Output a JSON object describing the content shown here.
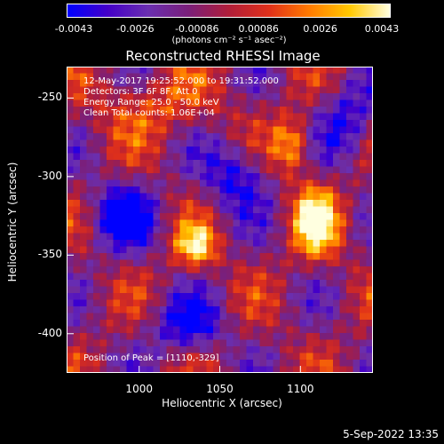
{
  "title": "Reconstructed RHESSI Image",
  "colorbar": {
    "ticks": [
      "-0.0043",
      "-0.0026",
      "-0.00086",
      "0.00086",
      "0.0026",
      "0.0043"
    ],
    "unit": "(photons cm⁻² s⁻¹ asec⁻²)",
    "colors": [
      "#0000ff",
      "#4400c8",
      "#6a2fb0",
      "#7a1f7a",
      "#b01e3a",
      "#e0301a",
      "#ff7a00",
      "#ffc800",
      "#ffffe0"
    ]
  },
  "annotations": {
    "time": "12-May-2017 19:25:52.000 to 19:31:52.000",
    "detectors": "Detectors: 3F 6F 8F, Att 0",
    "energy": "Energy Range: 25.0 - 50.0 keV",
    "clean": "Clean      Total counts: 1.06E+04",
    "peak": "Position of Peak = [1110,-329]"
  },
  "axes": {
    "xlabel": "Heliocentric X (arcsec)",
    "ylabel": "Heliocentric Y (arcsec)",
    "xticks": [
      "1000",
      "1050",
      "1100"
    ],
    "yticks": [
      "-250",
      "-300",
      "-350",
      "-400"
    ]
  },
  "footer": "5-Sep-2022 13:35",
  "chart_data": {
    "type": "heatmap",
    "title": "Reconstructed RHESSI Image",
    "xlabel": "Heliocentric X (arcsec)",
    "ylabel": "Heliocentric Y (arcsec)",
    "xlim": [
      955,
      1145
    ],
    "ylim": [
      -425,
      -230
    ],
    "zlim": [
      -0.0043,
      0.0043
    ],
    "peak": [
      1110,
      -329
    ],
    "sources": [
      {
        "x": 1110,
        "y": -329,
        "value": 0.0043
      },
      {
        "x": 1095,
        "y": -280,
        "value": 0.003
      },
      {
        "x": 1035,
        "y": -345,
        "value": 0.0036
      }
    ]
  }
}
